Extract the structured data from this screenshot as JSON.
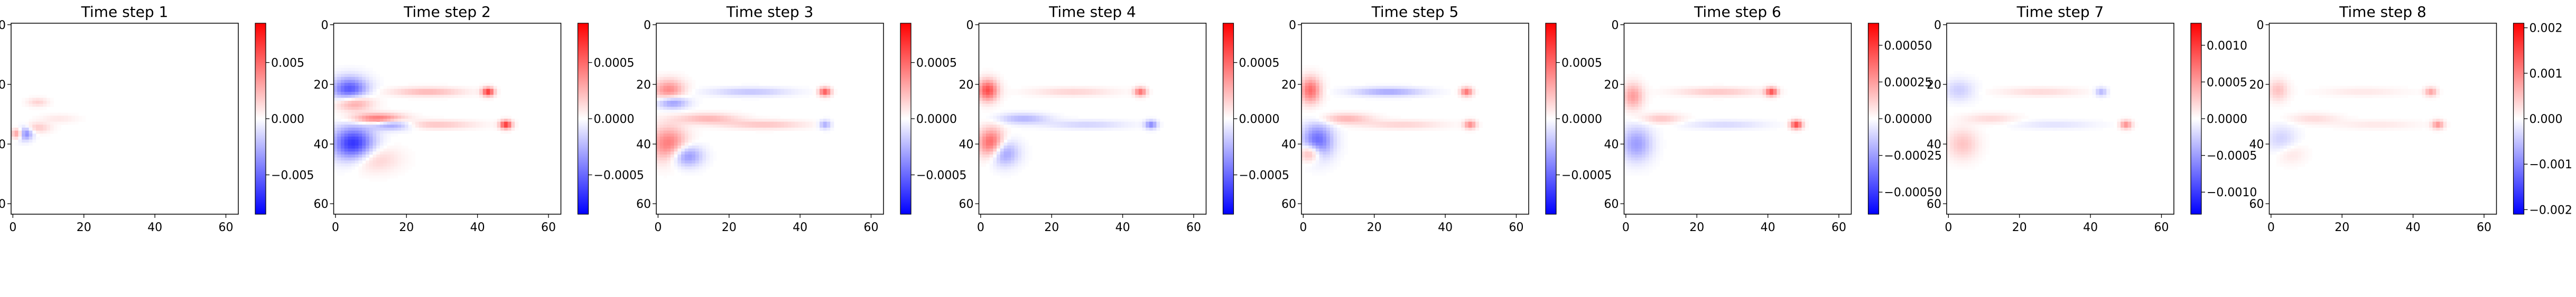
{
  "chart_data": [
    {
      "type": "heatmap",
      "title": "Time step 1",
      "x_ticks": [
        "0",
        "20",
        "40",
        "60"
      ],
      "y_ticks": [
        "0",
        "20",
        "40",
        "60"
      ],
      "xlim": [
        -0.5,
        63.5
      ],
      "ylim": [
        63.5,
        -0.5
      ],
      "colormap": "bwr",
      "colorbar_range": [
        -0.0085,
        0.0085
      ],
      "colorbar_ticks": [
        {
          "label": "0.005",
          "value": 0.005
        },
        {
          "label": "0.000",
          "value": 0.0
        },
        {
          "label": "−0.005",
          "value": -0.005
        }
      ],
      "blobs": [
        {
          "x": 3,
          "y": 36.5,
          "sx": 1.6,
          "sy": 1.5,
          "v": -0.0055
        },
        {
          "x": 1.5,
          "y": 36.5,
          "sx": 1.2,
          "sy": 1.2,
          "v": 0.006
        },
        {
          "x": 7,
          "y": 34.5,
          "sx": 2.5,
          "sy": 1.2,
          "v": 0.0018
        },
        {
          "x": 7,
          "y": 26,
          "sx": 2.0,
          "sy": 1.0,
          "v": 0.0015
        },
        {
          "x": 13,
          "y": 31.5,
          "sx": 3.5,
          "sy": 1.0,
          "v": 0.0008
        }
      ]
    },
    {
      "type": "heatmap",
      "title": "Time step 2",
      "x_ticks": [
        "0",
        "20",
        "40",
        "60"
      ],
      "y_ticks": [
        "0",
        "20",
        "40",
        "60"
      ],
      "xlim": [
        -0.5,
        63.5
      ],
      "ylim": [
        63.5,
        -0.5
      ],
      "colormap": "bwr",
      "colorbar_range": [
        -0.00085,
        0.00085
      ],
      "colorbar_ticks": [
        {
          "label": "0.0005",
          "value": 0.0005
        },
        {
          "label": "0.0000",
          "value": 0.0
        },
        {
          "label": "−0.0005",
          "value": -0.0005
        }
      ],
      "blobs": [
        {
          "x": 4,
          "y": 22,
          "sx": 3.5,
          "sy": 3,
          "v": -0.0006
        },
        {
          "x": 5,
          "y": 26,
          "sx": 3.5,
          "sy": 2,
          "v": 0.00045
        },
        {
          "x": 5,
          "y": 40,
          "sx": 4,
          "sy": 4,
          "v": -0.0007
        },
        {
          "x": 12,
          "y": 31.5,
          "sx": 5,
          "sy": 1.2,
          "v": 0.0005
        },
        {
          "x": 16,
          "y": 33.5,
          "sx": 4,
          "sy": 1.2,
          "v": -0.0004
        },
        {
          "x": 26,
          "y": 22.5,
          "sx": 7,
          "sy": 1.0,
          "v": 0.00025
        },
        {
          "x": 28,
          "y": 33.5,
          "sx": 8,
          "sy": 1.0,
          "v": 0.0002
        },
        {
          "x": 43,
          "y": 22.5,
          "sx": 1.2,
          "sy": 1.0,
          "v": 0.0007
        },
        {
          "x": 48,
          "y": 33.5,
          "sx": 1.2,
          "sy": 1.0,
          "v": 0.0007
        },
        {
          "x": 10,
          "y": 45,
          "sx": 5,
          "sy": 3,
          "v": 0.0002
        }
      ]
    },
    {
      "type": "heatmap",
      "title": "Time step 3",
      "x_ticks": [
        "0",
        "20",
        "40",
        "60"
      ],
      "y_ticks": [
        "0",
        "20",
        "40",
        "60"
      ],
      "xlim": [
        -0.5,
        63.5
      ],
      "ylim": [
        63.5,
        -0.5
      ],
      "colormap": "bwr",
      "colorbar_range": [
        -0.00085,
        0.00085
      ],
      "colorbar_ticks": [
        {
          "label": "0.0005",
          "value": 0.0005
        },
        {
          "label": "0.0000",
          "value": 0.0
        },
        {
          "label": "−0.0005",
          "value": -0.0005
        }
      ],
      "blobs": [
        {
          "x": 3,
          "y": 22,
          "sx": 3,
          "sy": 2.5,
          "v": 0.0004
        },
        {
          "x": 4,
          "y": 26,
          "sx": 3,
          "sy": 1.5,
          "v": -0.0004
        },
        {
          "x": 3,
          "y": 40,
          "sx": 3.5,
          "sy": 4,
          "v": 0.00045
        },
        {
          "x": 8,
          "y": 44,
          "sx": 3,
          "sy": 2.5,
          "v": -0.0004
        },
        {
          "x": 14,
          "y": 31.5,
          "sx": 6,
          "sy": 1.2,
          "v": 0.00025
        },
        {
          "x": 26,
          "y": 22.5,
          "sx": 8,
          "sy": 1.0,
          "v": -0.0002
        },
        {
          "x": 30,
          "y": 33.5,
          "sx": 8,
          "sy": 1.0,
          "v": 0.0002
        },
        {
          "x": 47,
          "y": 22.5,
          "sx": 1.2,
          "sy": 1.0,
          "v": 0.0006
        },
        {
          "x": 47,
          "y": 33.5,
          "sx": 1.2,
          "sy": 1.0,
          "v": -0.0003
        }
      ]
    },
    {
      "type": "heatmap",
      "title": "Time step 4",
      "x_ticks": [
        "0",
        "20",
        "40",
        "60"
      ],
      "y_ticks": [
        "0",
        "20",
        "40",
        "60"
      ],
      "xlim": [
        -0.5,
        63.5
      ],
      "ylim": [
        63.5,
        -0.5
      ],
      "colormap": "bwr",
      "colorbar_range": [
        -0.00085,
        0.00085
      ],
      "colorbar_ticks": [
        {
          "label": "0.0005",
          "value": 0.0005
        },
        {
          "label": "0.0000",
          "value": 0.0
        },
        {
          "label": "−0.0005",
          "value": -0.0005
        }
      ],
      "blobs": [
        {
          "x": 2,
          "y": 22,
          "sx": 2,
          "sy": 2.5,
          "v": 0.0006
        },
        {
          "x": 3,
          "y": 40,
          "sx": 2.5,
          "sy": 3.5,
          "v": 0.0006
        },
        {
          "x": 6,
          "y": 43,
          "sx": 3,
          "sy": 3,
          "v": -0.0004
        },
        {
          "x": 12,
          "y": 31.5,
          "sx": 5,
          "sy": 1.2,
          "v": -0.00025
        },
        {
          "x": 26,
          "y": 22.5,
          "sx": 8,
          "sy": 1.0,
          "v": 0.00015
        },
        {
          "x": 30,
          "y": 33.5,
          "sx": 8,
          "sy": 1.0,
          "v": -0.00015
        },
        {
          "x": 45,
          "y": 22.5,
          "sx": 1.2,
          "sy": 1.0,
          "v": 0.0005
        },
        {
          "x": 48,
          "y": 33.5,
          "sx": 1.2,
          "sy": 1.0,
          "v": -0.0004
        }
      ]
    },
    {
      "type": "heatmap",
      "title": "Time step 5",
      "x_ticks": [
        "0",
        "20",
        "40",
        "60"
      ],
      "y_ticks": [
        "0",
        "20",
        "40",
        "60"
      ],
      "xlim": [
        -0.5,
        63.5
      ],
      "ylim": [
        63.5,
        -0.5
      ],
      "colormap": "bwr",
      "colorbar_range": [
        -0.00085,
        0.00085
      ],
      "colorbar_ticks": [
        {
          "label": "0.0005",
          "value": 0.0005
        },
        {
          "label": "0.0000",
          "value": 0.0
        },
        {
          "label": "−0.0005",
          "value": -0.0005
        }
      ],
      "blobs": [
        {
          "x": 2,
          "y": 22,
          "sx": 2,
          "sy": 3,
          "v": 0.0005
        },
        {
          "x": 4,
          "y": 39,
          "sx": 3,
          "sy": 4,
          "v": -0.0005
        },
        {
          "x": 2,
          "y": 43,
          "sx": 2,
          "sy": 2,
          "v": 0.0004
        },
        {
          "x": 12,
          "y": 31.5,
          "sx": 5,
          "sy": 1.2,
          "v": 0.00025
        },
        {
          "x": 24,
          "y": 22.5,
          "sx": 7,
          "sy": 1.0,
          "v": -0.0003
        },
        {
          "x": 28,
          "y": 33.5,
          "sx": 8,
          "sy": 1.0,
          "v": 0.00015
        },
        {
          "x": 46,
          "y": 22.5,
          "sx": 1.2,
          "sy": 1.0,
          "v": 0.0005
        },
        {
          "x": 47,
          "y": 33.5,
          "sx": 1.2,
          "sy": 1.0,
          "v": 0.0004
        }
      ]
    },
    {
      "type": "heatmap",
      "title": "Time step 6",
      "x_ticks": [
        "0",
        "20",
        "40",
        "60"
      ],
      "y_ticks": [
        "0",
        "20",
        "40",
        "60"
      ],
      "xlim": [
        -0.5,
        63.5
      ],
      "ylim": [
        63.5,
        -0.5
      ],
      "colormap": "bwr",
      "colorbar_range": [
        -0.00065,
        0.00065
      ],
      "colorbar_ticks": [
        {
          "label": "0.00050",
          "value": 0.0005
        },
        {
          "label": "0.00025",
          "value": 0.00025
        },
        {
          "label": "0.00000",
          "value": 0.0
        },
        {
          "label": "−0.00025",
          "value": -0.00025
        },
        {
          "label": "−0.00050",
          "value": -0.0005
        }
      ],
      "blobs": [
        {
          "x": 2,
          "y": 24,
          "sx": 2,
          "sy": 3,
          "v": 0.00025
        },
        {
          "x": 3,
          "y": 40,
          "sx": 3,
          "sy": 4,
          "v": -0.00025
        },
        {
          "x": 10,
          "y": 31.5,
          "sx": 4,
          "sy": 1.2,
          "v": 0.00015
        },
        {
          "x": 26,
          "y": 22.5,
          "sx": 8,
          "sy": 1.0,
          "v": 0.00015
        },
        {
          "x": 28,
          "y": 33.5,
          "sx": 8,
          "sy": 1.0,
          "v": -0.0001
        },
        {
          "x": 41,
          "y": 22.5,
          "sx": 1.2,
          "sy": 1.0,
          "v": 0.00045
        },
        {
          "x": 48,
          "y": 33.5,
          "sx": 1.2,
          "sy": 1.0,
          "v": 0.0005
        }
      ]
    },
    {
      "type": "heatmap",
      "title": "Time step 7",
      "x_ticks": [
        "0",
        "20",
        "40",
        "60"
      ],
      "y_ticks": [
        "0",
        "20",
        "40",
        "60"
      ],
      "xlim": [
        -0.5,
        63.5
      ],
      "ylim": [
        63.5,
        -0.5
      ],
      "colormap": "bwr",
      "colorbar_range": [
        -0.0013,
        0.0013
      ],
      "colorbar_ticks": [
        {
          "label": "0.0010",
          "value": 0.001
        },
        {
          "label": "0.0005",
          "value": 0.0005
        },
        {
          "label": "0.0000",
          "value": 0.0
        },
        {
          "label": "−0.0005",
          "value": -0.0005
        },
        {
          "label": "−0.0010",
          "value": -0.001
        }
      ],
      "blobs": [
        {
          "x": 3,
          "y": 22,
          "sx": 3,
          "sy": 2.5,
          "v": -0.00025
        },
        {
          "x": 4,
          "y": 40,
          "sx": 3,
          "sy": 3.5,
          "v": 0.0003
        },
        {
          "x": 12,
          "y": 31.5,
          "sx": 5,
          "sy": 1.2,
          "v": 0.0002
        },
        {
          "x": 26,
          "y": 22.5,
          "sx": 8,
          "sy": 1.0,
          "v": 0.0002
        },
        {
          "x": 30,
          "y": 33.5,
          "sx": 8,
          "sy": 1.0,
          "v": -0.00015
        },
        {
          "x": 43,
          "y": 22.5,
          "sx": 1.2,
          "sy": 1.0,
          "v": -0.0004
        },
        {
          "x": 50,
          "y": 33.5,
          "sx": 1.2,
          "sy": 1.0,
          "v": 0.0006
        }
      ]
    },
    {
      "type": "heatmap",
      "title": "Time step 8",
      "x_ticks": [
        "0",
        "20",
        "40",
        "60"
      ],
      "y_ticks": [
        "0",
        "20",
        "40",
        "60"
      ],
      "xlim": [
        -0.5,
        63.5
      ],
      "ylim": [
        63.5,
        -0.5
      ],
      "colormap": "bwr",
      "colorbar_range": [
        -0.0021,
        0.0021
      ],
      "colorbar_ticks": [
        {
          "label": "0.002",
          "value": 0.002
        },
        {
          "label": "0.001",
          "value": 0.001
        },
        {
          "label": "0.000",
          "value": 0.0
        },
        {
          "label": "−0.001",
          "value": -0.001
        },
        {
          "label": "−0.002",
          "value": -0.002
        }
      ],
      "blobs": [
        {
          "x": 2,
          "y": 22,
          "sx": 2,
          "sy": 2.5,
          "v": 0.0005
        },
        {
          "x": 3,
          "y": 39,
          "sx": 3,
          "sy": 3.5,
          "v": -0.0004
        },
        {
          "x": 5,
          "y": 43,
          "sx": 3,
          "sy": 2.5,
          "v": 0.0003
        },
        {
          "x": 12,
          "y": 31.5,
          "sx": 5,
          "sy": 1.2,
          "v": 0.0003
        },
        {
          "x": 26,
          "y": 22.5,
          "sx": 8,
          "sy": 1.0,
          "v": 0.0002
        },
        {
          "x": 30,
          "y": 33.5,
          "sx": 8,
          "sy": 1.0,
          "v": 0.0002
        },
        {
          "x": 45,
          "y": 22.5,
          "sx": 1.2,
          "sy": 1.0,
          "v": 0.0008
        },
        {
          "x": 47,
          "y": 33.5,
          "sx": 1.2,
          "sy": 1.0,
          "v": 0.0009
        }
      ]
    }
  ]
}
